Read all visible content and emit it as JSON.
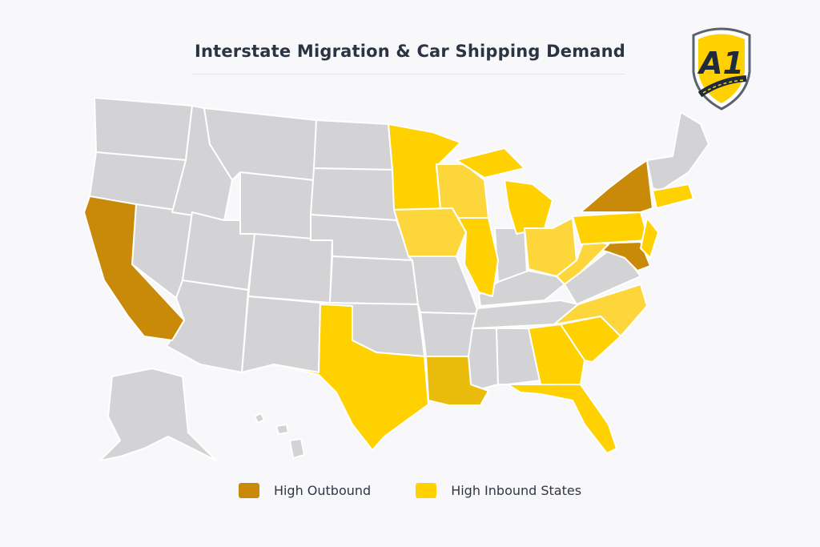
{
  "header": {
    "title": "Interstate Migration & Car Shipping Demand"
  },
  "logo": {
    "text": "A1",
    "colors": {
      "shield": "#FFD100",
      "outline": "#5a6270",
      "letters": "#1f2a3c"
    }
  },
  "colors": {
    "outbound": "#C98A0A",
    "inbound": "#FFD100",
    "inbound_light": "#FCD63A",
    "louisiana": "#E9BB0B",
    "neutral": "#D3D3D6",
    "border": "#ffffff"
  },
  "legend": [
    {
      "label": "High Outbound",
      "color": "#C98A0A"
    },
    {
      "label": "High Inbound States",
      "color": "#FFD100"
    }
  ],
  "map": {
    "outbound_states": [
      "CA",
      "NY",
      "MD",
      "NJ-shore"
    ],
    "inbound_states": [
      "TX",
      "FL",
      "GA",
      "SC",
      "NC",
      "MN",
      "IA",
      "WI",
      "MI",
      "IL",
      "OH",
      "WV",
      "PA",
      "NJ",
      "MA",
      "CT",
      "LA"
    ],
    "neutral_states": [
      "WA",
      "OR",
      "NV",
      "ID",
      "MT",
      "WY",
      "UT",
      "AZ",
      "CO",
      "NM",
      "ND",
      "SD",
      "NE",
      "KS",
      "OK",
      "MO",
      "AR",
      "IN",
      "KY",
      "TN",
      "MS",
      "AL",
      "VA",
      "NE-states",
      "AK",
      "HI"
    ]
  }
}
